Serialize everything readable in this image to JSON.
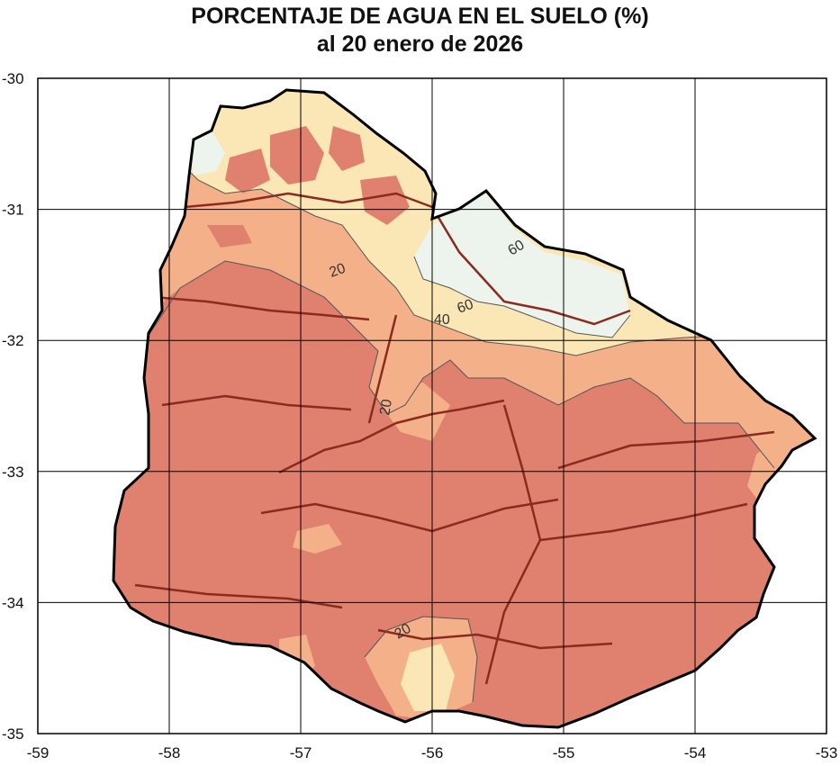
{
  "title": "PORCENTAJE DE AGUA EN EL SUELO (%)",
  "subtitle": "al 20 enero de 2026",
  "axes": {
    "x_ticks": [
      "-59",
      "-58",
      "-57",
      "-56",
      "-55",
      "-54",
      "-53"
    ],
    "y_ticks": [
      "-30",
      "-31",
      "-32",
      "-33",
      "-34",
      "-35"
    ],
    "x_range": [
      -59,
      -53
    ],
    "y_range": [
      -35,
      -30
    ]
  },
  "contour_labels": [
    "60",
    "20",
    "40",
    "60",
    "20",
    "20"
  ],
  "colors": {
    "lt20": "#e0806f",
    "20to40": "#f4b089",
    "40to60": "#fbe6b5",
    "gt60": "#edf4ee",
    "rivers": "#8b2a1e",
    "border": "#000000",
    "grid": "#000000"
  }
}
